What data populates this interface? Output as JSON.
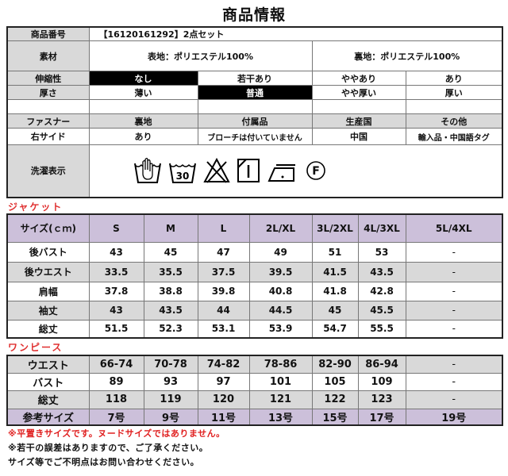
{
  "title": "商品情報",
  "info": {
    "product_no_label": "商品番号",
    "product_no": "【16120161292】2点セット",
    "material_label": "素材",
    "material_outer": "表地：ポリエステル100%",
    "material_lining": "裏地：ポリエステル100%",
    "stretch_label": "伸縮性",
    "stretch_options": [
      "なし",
      "若干あり",
      "ややあり",
      "あり"
    ],
    "stretch_selected": 0,
    "thickness_label": "厚さ",
    "thickness_options": [
      "薄い",
      "普通",
      "やや厚い",
      "厚い"
    ],
    "thickness_selected": 1,
    "headers": [
      "ファスナー",
      "裏地",
      "付属品",
      "生産国",
      "その他"
    ],
    "values": [
      "右サイド",
      "あり",
      "ブローチは付いていません",
      "中国",
      "輸入品・中国語タグ"
    ],
    "wash_label": "洗濯表示",
    "wash_icons": [
      "hand-wash-icon",
      "wash-30-icon",
      "no-bleach-icon",
      "dry-flat-shade-icon",
      "iron-low-icon",
      "dry-clean-f-icon"
    ],
    "wash_30_text": "30",
    "dry_clean_text": "F"
  },
  "jacket": {
    "label": "ジャケット",
    "header": [
      "サイズ(ｃｍ)",
      "S",
      "M",
      "L",
      "2L/XL",
      "3L/2XL",
      "4L/3XL",
      "5L/4XL"
    ],
    "rows": [
      [
        "後バスト",
        "43",
        "45",
        "47",
        "49",
        "51",
        "53",
        "-"
      ],
      [
        "後ウエスト",
        "33.5",
        "35.5",
        "37.5",
        "39.5",
        "41.5",
        "43.5",
        "-"
      ],
      [
        "肩幅",
        "37.8",
        "38.8",
        "39.8",
        "40.8",
        "41.8",
        "42.8",
        "-"
      ],
      [
        "袖丈",
        "43",
        "43.5",
        "44",
        "44.5",
        "45",
        "45.5",
        "-"
      ],
      [
        "総丈",
        "51.5",
        "52.3",
        "53.1",
        "53.9",
        "54.7",
        "55.5",
        "-"
      ]
    ]
  },
  "onepiece": {
    "label": "ワンピース",
    "rows": [
      [
        "ウエスト",
        "66-74",
        "70-78",
        "74-82",
        "78-86",
        "82-90",
        "86-94",
        "-"
      ],
      [
        "バスト",
        "89",
        "93",
        "97",
        "101",
        "105",
        "109",
        "-"
      ],
      [
        "総丈",
        "118",
        "119",
        "120",
        "121",
        "122",
        "123",
        "-"
      ]
    ],
    "ref": [
      "参考サイズ",
      "7号",
      "9号",
      "11号",
      "13号",
      "15号",
      "17号",
      "19号"
    ]
  },
  "notes": [
    "※平置きサイズです。ヌードサイズではありません。",
    "※若干の誤差はありますので、ご了承ください。",
    "サイズ等でご不明点はお問い合わせください。"
  ],
  "colors": {
    "gray": "#d9d9d9",
    "purple": "#ccc0da",
    "red": "#e02020"
  }
}
